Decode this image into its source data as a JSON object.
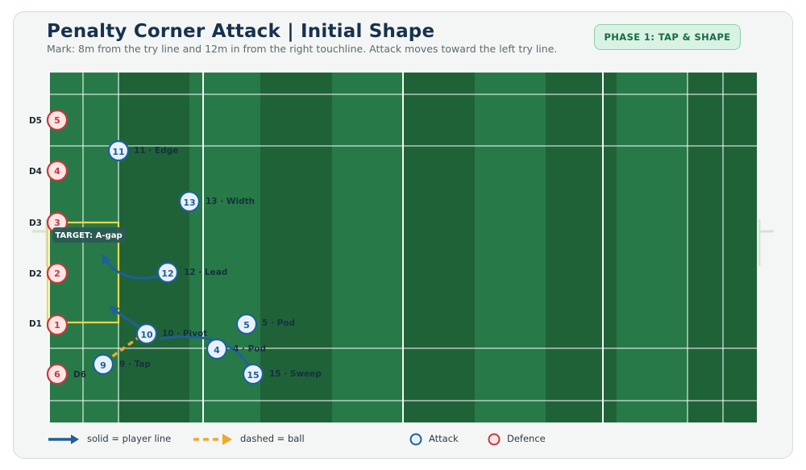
{
  "header": {
    "title": "Penalty Corner Attack | Initial Shape",
    "subtitle": "Mark: 8m from the try line and 12m in from the right touchline. Attack moves toward the left try line.",
    "phase_badge": "PHASE 1: TAP & SHAPE"
  },
  "colors": {
    "pitch_dark": "#1f6238",
    "pitch_light": "#277a47",
    "attack": "#1f5f9a",
    "attack_fill": "#e8f1fa",
    "defence": "#c7383d",
    "defence_fill": "#fbe5e5",
    "ball": "#f0a72a",
    "target_zone": "#f1d54e"
  },
  "target_zone": {
    "label": "TARGET: A-gap"
  },
  "defenders": [
    {
      "number": "5",
      "label": "D5"
    },
    {
      "number": "4",
      "label": "D4"
    },
    {
      "number": "3",
      "label": "D3"
    },
    {
      "number": "2",
      "label": "D2"
    },
    {
      "number": "1",
      "label": "D1"
    },
    {
      "number": "6",
      "label": "D6"
    }
  ],
  "attackers": [
    {
      "number": "11",
      "label": "11 · Edge"
    },
    {
      "number": "13",
      "label": "13 · Width"
    },
    {
      "number": "12",
      "label": "12 · Lead"
    },
    {
      "number": "5",
      "label": "5 · Pod"
    },
    {
      "number": "10",
      "label": "10 · Pivot"
    },
    {
      "number": "4",
      "label": "4 · Pod"
    },
    {
      "number": "9",
      "label": "9 · Tap"
    },
    {
      "number": "15",
      "label": "15 · Sweep"
    }
  ],
  "legend": {
    "player_line": "solid = player line",
    "ball": "dashed = ball",
    "attack": "Attack",
    "defence": "Defence"
  }
}
